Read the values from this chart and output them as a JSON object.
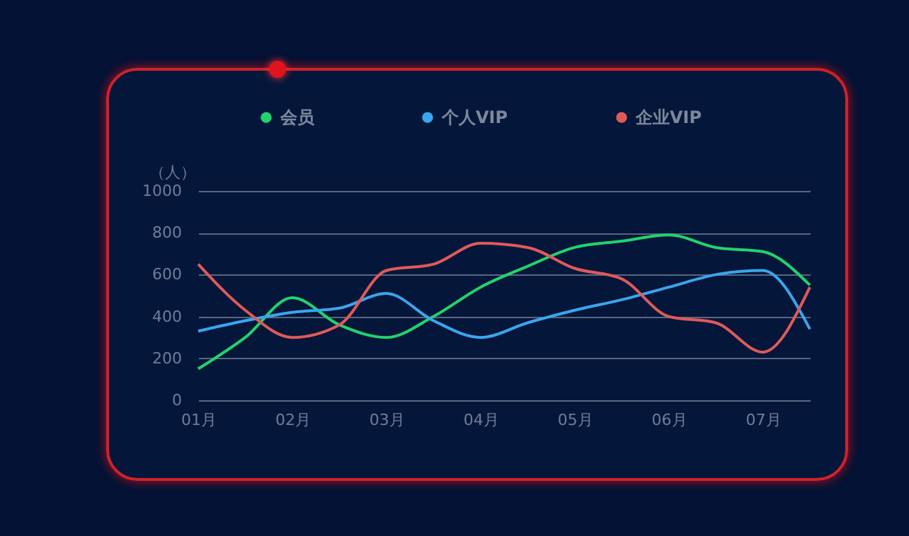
{
  "chart_data": {
    "type": "line",
    "ylabel": "（人）",
    "categories": [
      "01月",
      null,
      "02月",
      null,
      "03月",
      null,
      "04月",
      null,
      "05月",
      null,
      "06月",
      null,
      "07月",
      null
    ],
    "series": [
      {
        "name": "会员",
        "color": "#22d36c",
        "values": [
          150,
          300,
          490,
          360,
          300,
          400,
          540,
          640,
          730,
          760,
          790,
          730,
          710,
          550
        ]
      },
      {
        "name": "个人VIP",
        "color": "#3aa6ee",
        "values": [
          330,
          380,
          420,
          440,
          510,
          380,
          300,
          370,
          430,
          480,
          540,
          600,
          620,
          340
        ]
      },
      {
        "name": "企业VIP",
        "color": "#e05a5a",
        "values": [
          650,
          430,
          300,
          360,
          620,
          650,
          750,
          730,
          630,
          580,
          400,
          370,
          230,
          540
        ]
      }
    ],
    "ylim": [
      0,
      1000
    ],
    "yticks": [
      0,
      200,
      400,
      600,
      800,
      1000
    ],
    "grid": "y",
    "legend": "top",
    "marker": "none",
    "line_style": "solid"
  }
}
